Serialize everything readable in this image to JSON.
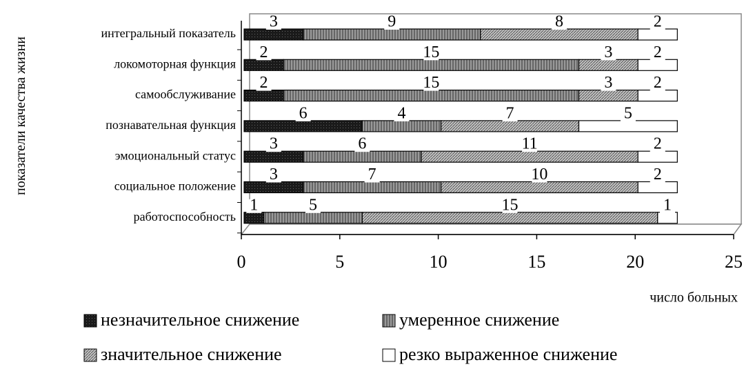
{
  "chart_data": {
    "type": "bar",
    "orientation": "horizontal",
    "stacked": true,
    "categories": [
      "интегральный показатель",
      "локомоторная функция",
      "самообслуживание",
      "познавательная функция",
      "эмоциональный статус",
      "социальное положение",
      "работоспособность"
    ],
    "series": [
      {
        "name": "незначительное снижение",
        "color": "#1a1a1a",
        "values": [
          3,
          2,
          2,
          6,
          3,
          3,
          1
        ]
      },
      {
        "name": "умеренное снижение",
        "color": "#9a9a9a",
        "values": [
          9,
          15,
          15,
          4,
          6,
          7,
          5
        ]
      },
      {
        "name": "значительное снижение",
        "color": "#c4c4c4",
        "values": [
          8,
          3,
          3,
          7,
          11,
          10,
          15
        ]
      },
      {
        "name": "резко выраженное снижение",
        "color": "#ffffff",
        "values": [
          2,
          2,
          2,
          5,
          2,
          2,
          1
        ]
      }
    ],
    "xlim": [
      0,
      25
    ],
    "xticks": [
      0,
      5,
      10,
      15,
      20,
      25
    ],
    "xlabel": "число больных",
    "ylabel": "показатели качества жизни"
  }
}
